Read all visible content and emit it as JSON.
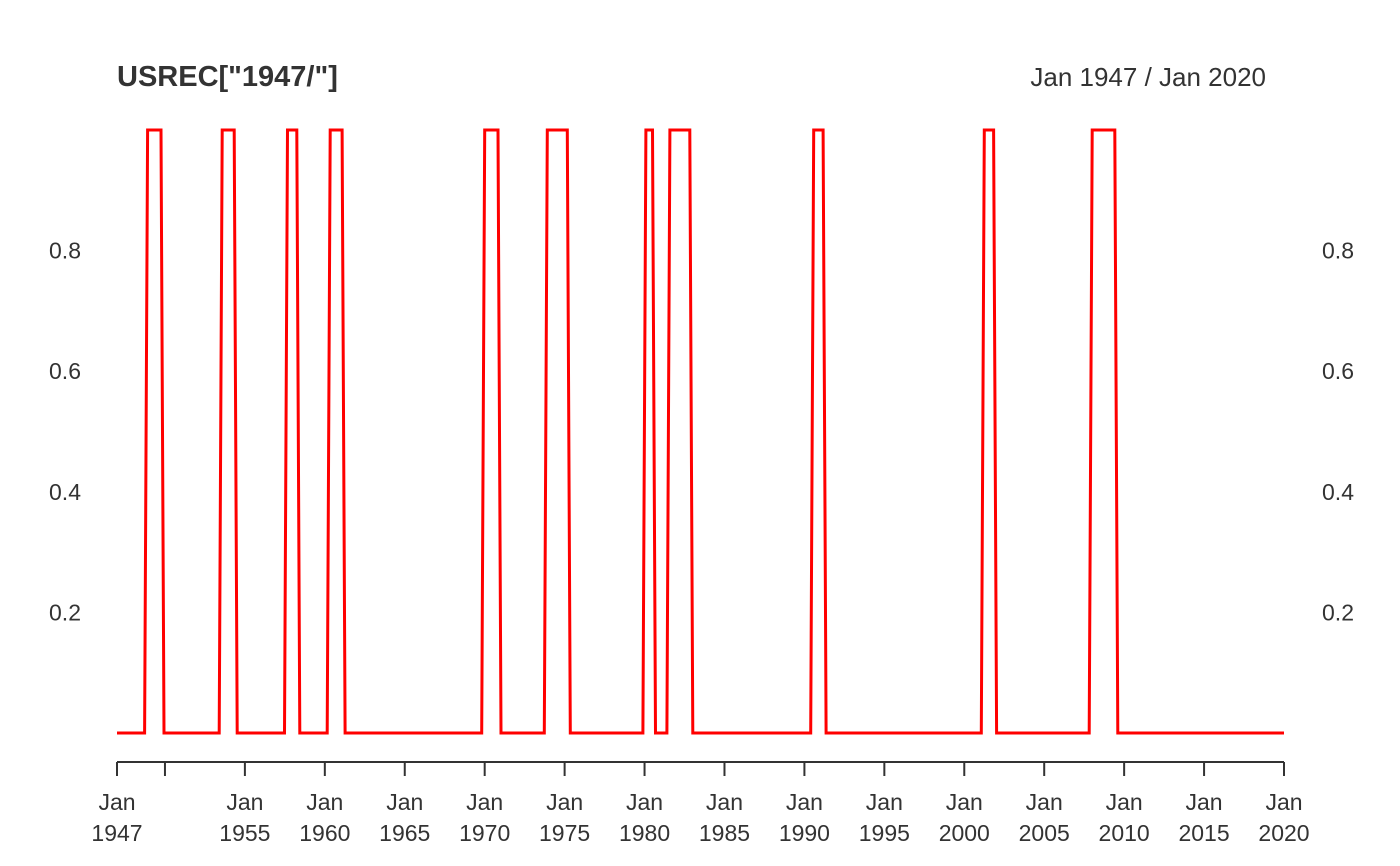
{
  "chart_data": {
    "type": "line",
    "title": "USREC[\"1947/\"]",
    "date_range_label": "Jan 1947 / Jan 2020",
    "x_start": "1947-01",
    "x_end": "2020-01",
    "ylim": [
      0,
      1
    ],
    "y_ticks": [
      "0.2",
      "0.4",
      "0.6",
      "0.8"
    ],
    "y_tick_values": [
      0.2,
      0.4,
      0.6,
      0.8
    ],
    "y_axis_sides": "left-and-right",
    "grid": false,
    "x_ticks": [
      {
        "date": "1947-01",
        "line1": "Jan",
        "line2": "1947"
      },
      {
        "date": "1950-01",
        "line1": "",
        "line2": ""
      },
      {
        "date": "1955-01",
        "line1": "Jan",
        "line2": "1955"
      },
      {
        "date": "1960-01",
        "line1": "Jan",
        "line2": "1960"
      },
      {
        "date": "1965-01",
        "line1": "Jan",
        "line2": "1965"
      },
      {
        "date": "1970-01",
        "line1": "Jan",
        "line2": "1970"
      },
      {
        "date": "1975-01",
        "line1": "Jan",
        "line2": "1975"
      },
      {
        "date": "1980-01",
        "line1": "Jan",
        "line2": "1980"
      },
      {
        "date": "1985-01",
        "line1": "Jan",
        "line2": "1985"
      },
      {
        "date": "1990-01",
        "line1": "Jan",
        "line2": "1990"
      },
      {
        "date": "1995-01",
        "line1": "Jan",
        "line2": "1995"
      },
      {
        "date": "2000-01",
        "line1": "Jan",
        "line2": "2000"
      },
      {
        "date": "2005-01",
        "line1": "Jan",
        "line2": "2005"
      },
      {
        "date": "2010-01",
        "line1": "Jan",
        "line2": "2010"
      },
      {
        "date": "2015-01",
        "line1": "Jan",
        "line2": "2015"
      },
      {
        "date": "2020-01",
        "line1": "Jan",
        "line2": "2020"
      }
    ],
    "series": [
      {
        "color": "#ff0000",
        "baseline": 0,
        "recession_value": 1,
        "recessions": [
          {
            "start": "1948-12",
            "end": "1949-10"
          },
          {
            "start": "1953-08",
            "end": "1954-05"
          },
          {
            "start": "1957-09",
            "end": "1958-04"
          },
          {
            "start": "1960-05",
            "end": "1961-02"
          },
          {
            "start": "1970-01",
            "end": "1970-11"
          },
          {
            "start": "1973-12",
            "end": "1975-03"
          },
          {
            "start": "1980-02",
            "end": "1980-07"
          },
          {
            "start": "1981-08",
            "end": "1982-11"
          },
          {
            "start": "1990-08",
            "end": "1991-03"
          },
          {
            "start": "2001-04",
            "end": "2001-11"
          },
          {
            "start": "2008-01",
            "end": "2009-06"
          }
        ]
      }
    ]
  }
}
